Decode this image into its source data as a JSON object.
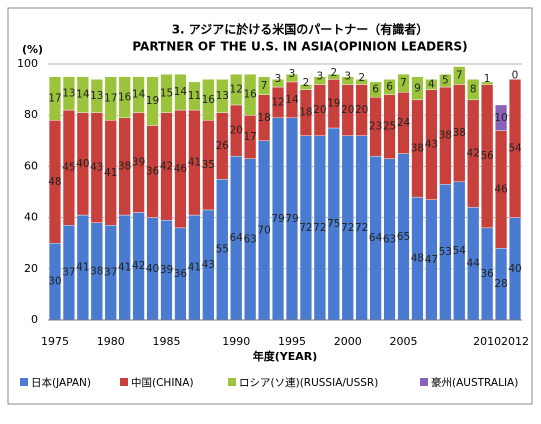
{
  "chart_data": {
    "type": "stacked-bar",
    "title": "3. アジアに於ける米国のパートナー（有識者）",
    "subtitle": "PARTNER OF THE U.S. IN ASIA(OPINION LEADERS)",
    "y_label": "(%)",
    "x_label": "年度(YEAR)",
    "categories": [
      "1975",
      null,
      null,
      null,
      "1980",
      null,
      null,
      null,
      "1985",
      null,
      null,
      null,
      null,
      "1990",
      null,
      null,
      null,
      "1995",
      null,
      null,
      null,
      "2000",
      null,
      null,
      null,
      "2005",
      null,
      null,
      null,
      null,
      null,
      "2010",
      null,
      "2012"
    ],
    "series": [
      {
        "name": "日本(JAPAN)",
        "color": "#4a7bd0",
        "values": [
          30,
          37,
          41,
          38,
          37,
          41,
          42,
          40,
          39,
          36,
          41,
          43,
          55,
          64,
          63,
          70,
          79,
          79,
          72,
          72,
          75,
          72,
          72,
          64,
          63,
          65,
          48,
          47,
          53,
          54,
          44,
          36,
          28,
          40
        ]
      },
      {
        "name": "中国(CHINA)",
        "color": "#c8403c",
        "values": [
          48,
          45,
          40,
          43,
          41,
          38,
          39,
          36,
          42,
          46,
          41,
          35,
          26,
          20,
          17,
          18,
          12,
          14,
          18,
          20,
          19,
          20,
          20,
          23,
          25,
          24,
          38,
          43,
          38,
          38,
          42,
          56,
          46,
          54
        ]
      },
      {
        "name": "ロシア(ソ連)(RUSSIA/USSR)",
        "color": "#9bc43c",
        "values": [
          17,
          13,
          14,
          13,
          17,
          16,
          14,
          19,
          15,
          14,
          11,
          16,
          13,
          12,
          16,
          7,
          3,
          3,
          2,
          3,
          2,
          3,
          2,
          6,
          6,
          7,
          9,
          4,
          5,
          7,
          8,
          1,
          0,
          0
        ]
      },
      {
        "name": "豪州(AUSTRALIA)",
        "color": "#8a62b8",
        "values": [
          null,
          null,
          null,
          null,
          null,
          null,
          null,
          null,
          null,
          null,
          null,
          null,
          null,
          null,
          null,
          null,
          null,
          null,
          null,
          null,
          null,
          null,
          null,
          null,
          null,
          null,
          null,
          null,
          null,
          null,
          null,
          null,
          10,
          null
        ]
      }
    ],
    "ylim": [
      0,
      100
    ],
    "yticks": [
      0,
      20,
      40,
      60,
      80,
      100
    ],
    "grid": true,
    "legend": "bottom"
  }
}
